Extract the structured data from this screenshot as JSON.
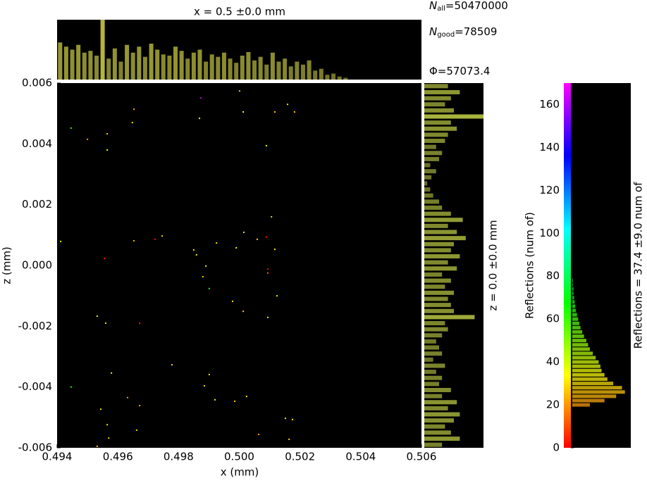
{
  "chart_data": {
    "type": "scatter",
    "title": "x = 0.5 ±0.0 mm",
    "xlabel": "x (mm)",
    "ylabel": "z (mm)",
    "stats": [
      {
        "symbol": "N",
        "subscript": "all",
        "text": "=50470000"
      },
      {
        "symbol": "N",
        "subscript": "good",
        "text": "=78509"
      },
      {
        "symbol": "Φ",
        "text": "=57073.4"
      }
    ],
    "xlim": [
      0.494,
      0.506
    ],
    "ylim": [
      -0.006,
      0.006
    ],
    "xticks": [
      0.494,
      0.496,
      0.498,
      {
        "value": 0.5,
        "label": "0.500"
      },
      0.502,
      0.504,
      0.506
    ],
    "yticks": [
      0.006,
      0.004,
      0.002,
      {
        "value": 0,
        "label": "0.000"
      },
      -0.002,
      -0.004,
      -0.006
    ],
    "x": [
      0.50001,
      0.49874,
      0.50159,
      0.50013,
      0.49653,
      0.50117,
      0.50182,
      0.49446,
      0.49648,
      0.49869,
      0.495,
      0.49565,
      0.49565,
      0.50089,
      0.50106,
      0.50015,
      0.49746,
      0.49723,
      0.49653,
      0.49412,
      0.49925,
      0.50059,
      0.50089,
      0.49556,
      0.4985,
      0.49859,
      0.4999,
      0.50117,
      0.4989,
      0.50094,
      0.50094,
      0.4988,
      0.49901,
      0.50124,
      0.49978,
      0.50013,
      0.50094,
      0.49532,
      0.4956,
      0.49672,
      0.49778,
      0.49579,
      0.49901,
      0.49885,
      0.49446,
      0.49632,
      0.4992,
      0.50024,
      0.49985,
      0.49672,
      0.49544,
      0.50152,
      0.50175,
      0.49565,
      0.49662,
      0.50064,
      0.50164,
      0.4957,
      0.49532
    ],
    "y": [
      0.00574,
      0.00551,
      0.0053,
      0.00505,
      0.00514,
      0.00505,
      0.00505,
      0.00452,
      0.0047,
      0.00484,
      0.00415,
      0.00433,
      0.0038,
      0.00394,
      0.0016,
      0.00109,
      0.00097,
      0.00086,
      0.00081,
      0.00079,
      0.00074,
      0.00086,
      0.00093,
      0.00023,
      0.00051,
      0.00035,
      0.00058,
      0.00053,
      -2e-05,
      -0.00012,
      -0.00025,
      -0.00037,
      -0.00076,
      -0.001,
      -0.00118,
      -0.00151,
      -0.00171,
      -0.00167,
      -0.0019,
      -0.0019,
      -0.00327,
      -0.00354,
      -0.00359,
      -0.00396,
      -0.004,
      -0.00435,
      -0.00442,
      -0.00431,
      -0.00447,
      -0.00461,
      -0.00473,
      -0.00503,
      -0.00507,
      -0.00524,
      -0.00542,
      -0.00556,
      -0.00572,
      -0.00568,
      -0.00595
    ],
    "c": [
      25,
      165,
      30,
      34,
      22,
      28,
      26,
      60,
      30,
      32,
      20,
      28,
      34,
      36,
      45,
      30,
      28,
      2,
      24,
      38,
      30,
      28,
      2,
      4,
      30,
      32,
      34,
      30,
      40,
      2,
      10,
      28,
      70,
      32,
      30,
      28,
      40,
      32,
      30,
      4,
      30,
      32,
      30,
      28,
      62,
      20,
      32,
      30,
      28,
      24,
      30,
      30,
      32,
      30,
      28,
      20,
      30,
      26,
      26
    ],
    "top_histogram": {
      "color": "#b4b43c",
      "x": [
        0.4941,
        0.4943,
        0.4945,
        0.4947,
        0.4949,
        0.4951,
        0.4953,
        0.4955,
        0.4957,
        0.4959,
        0.4961,
        0.4963,
        0.4965,
        0.4967,
        0.4969,
        0.4971,
        0.4973,
        0.4975,
        0.4977,
        0.4979,
        0.4981,
        0.4983,
        0.4985,
        0.4987,
        0.4989,
        0.4991,
        0.4993,
        0.4995,
        0.4997,
        0.4999,
        0.5001,
        0.5003,
        0.5005,
        0.5007,
        0.5009,
        0.5011,
        0.5013,
        0.5015,
        0.5017,
        0.5019,
        0.5021,
        0.5023,
        0.5025,
        0.5027,
        0.5029,
        0.5031,
        0.5033,
        0.5035
      ],
      "values": [
        0.62,
        0.55,
        0.5,
        0.58,
        0.45,
        0.48,
        0.4,
        1.0,
        0.35,
        0.52,
        0.3,
        0.58,
        0.45,
        0.55,
        0.38,
        0.6,
        0.5,
        0.42,
        0.4,
        0.55,
        0.48,
        0.35,
        0.45,
        0.5,
        0.3,
        0.42,
        0.38,
        0.45,
        0.35,
        0.28,
        0.4,
        0.46,
        0.32,
        0.38,
        0.25,
        0.45,
        0.3,
        0.35,
        0.22,
        0.3,
        0.25,
        0.32,
        0.15,
        0.18,
        0.08,
        0.1,
        0.05,
        0.03
      ]
    },
    "side_histogram": {
      "color": "#a8b43c",
      "label": "z = 0.0 ±0.0 mm",
      "y": [
        -0.0059,
        -0.0057,
        -0.0055,
        -0.0053,
        -0.0051,
        -0.0049,
        -0.0047,
        -0.0045,
        -0.0043,
        -0.0041,
        -0.0039,
        -0.0037,
        -0.0035,
        -0.0033,
        -0.0031,
        -0.0029,
        -0.0027,
        -0.0025,
        -0.0023,
        -0.0021,
        -0.0019,
        -0.0017,
        -0.0015,
        -0.0013,
        -0.0011,
        -0.0009,
        -0.0007,
        -0.0005,
        -0.0003,
        -0.0001,
        0.0001,
        0.0003,
        0.0005,
        0.0007,
        0.0009,
        0.0011,
        0.0013,
        0.0015,
        0.0017,
        0.0019,
        0.0021,
        0.0023,
        0.0025,
        0.0027,
        0.0029,
        0.0031,
        0.0033,
        0.0035,
        0.0037,
        0.0039,
        0.0041,
        0.0043,
        0.0045,
        0.0047,
        0.0049,
        0.0051,
        0.0053,
        0.0055,
        0.0057,
        0.0059
      ],
      "values": [
        0.3,
        0.6,
        0.45,
        0.35,
        0.5,
        0.6,
        0.4,
        0.55,
        0.3,
        0.45,
        0.25,
        0.3,
        0.2,
        0.35,
        0.15,
        0.3,
        0.25,
        0.2,
        0.3,
        0.4,
        0.35,
        0.85,
        0.5,
        0.45,
        0.4,
        0.5,
        0.35,
        0.45,
        0.3,
        0.55,
        0.4,
        0.6,
        0.45,
        0.5,
        0.7,
        0.55,
        0.4,
        0.65,
        0.45,
        0.3,
        0.25,
        0.15,
        0.1,
        0.05,
        0.12,
        0.2,
        0.1,
        0.25,
        0.3,
        0.2,
        0.35,
        0.4,
        0.55,
        0.45,
        1.0,
        0.5,
        0.35,
        0.45,
        0.6,
        0.4
      ]
    },
    "colorbar": {
      "label": "Reflections (num of)",
      "stat_label": "Reflections = 37.4 ±9.0 num of",
      "ylim": [
        0,
        170
      ],
      "yticks": [
        0,
        20,
        40,
        60,
        80,
        100,
        120,
        140,
        160
      ],
      "hist_y": [
        20,
        22,
        24,
        26,
        28,
        30,
        32,
        34,
        36,
        38,
        40,
        42,
        44,
        46,
        48,
        50,
        52,
        54,
        56,
        58,
        60,
        62,
        64,
        66,
        68,
        70,
        72,
        74,
        76,
        78
      ],
      "hist_values": [
        0.3,
        0.55,
        0.75,
        0.9,
        0.85,
        0.7,
        0.6,
        0.55,
        0.5,
        0.48,
        0.45,
        0.4,
        0.35,
        0.3,
        0.27,
        0.24,
        0.2,
        0.17,
        0.14,
        0.12,
        0.1,
        0.08,
        0.06,
        0.05,
        0.04,
        0.03,
        0.02,
        0.02,
        0.01,
        0.01
      ]
    }
  }
}
